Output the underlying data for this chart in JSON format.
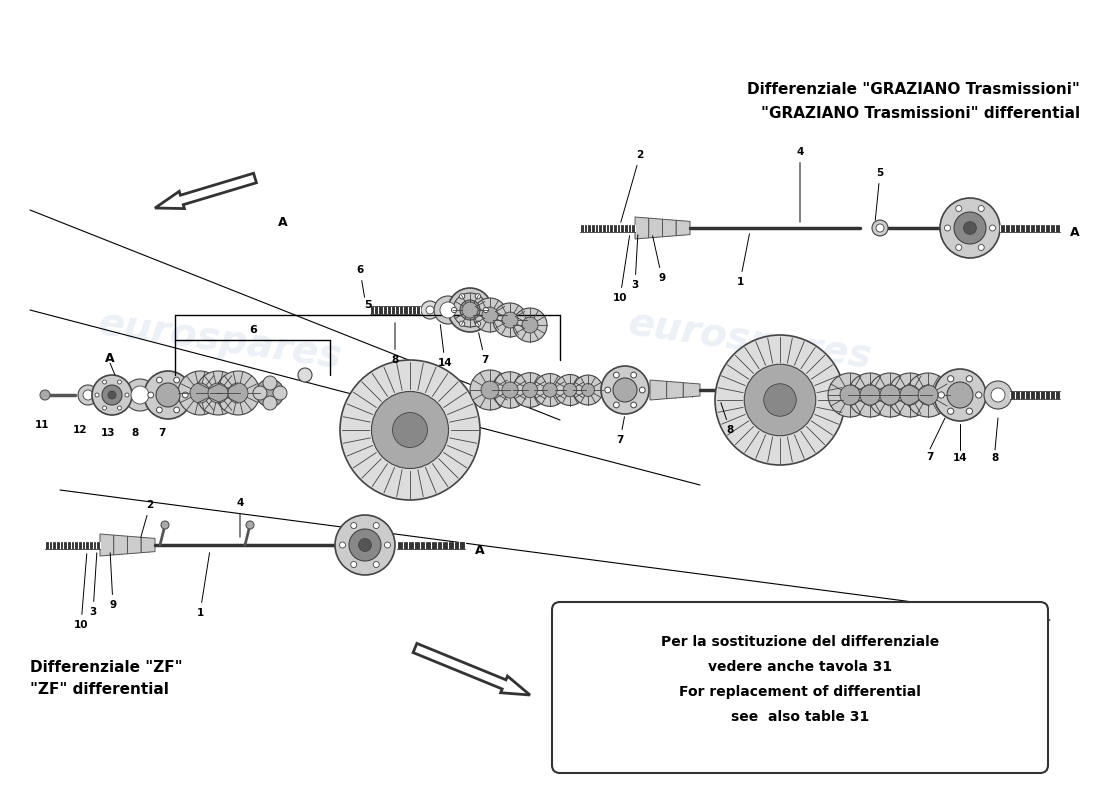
{
  "background_color": "#ffffff",
  "watermark_text": "eurospares",
  "watermark_color": "#c8d4e8",
  "watermark_alpha": 0.35,
  "title_graziano_line1": "Differenziale \"GRAZIANO Trasmissioni\"",
  "title_graziano_line2": "\"GRAZIANO Trasmissioni\" differential",
  "title_zf_line1": "Differenziale \"ZF\"",
  "title_zf_line2": "\"ZF\" differential",
  "note_line1": "Per la sostituzione del differenziale",
  "note_line2": "vedere anche tavola 31",
  "note_line3": "For replacement of differential",
  "note_line4": "see  also table 31",
  "label_color": "#000000",
  "line_color": "#000000",
  "component_color": "#444444",
  "component_fill": "#cccccc",
  "font_size_title": 11,
  "font_size_label": 8,
  "font_size_note": 10,
  "fig_width": 11.0,
  "fig_height": 8.0,
  "dpi": 100
}
